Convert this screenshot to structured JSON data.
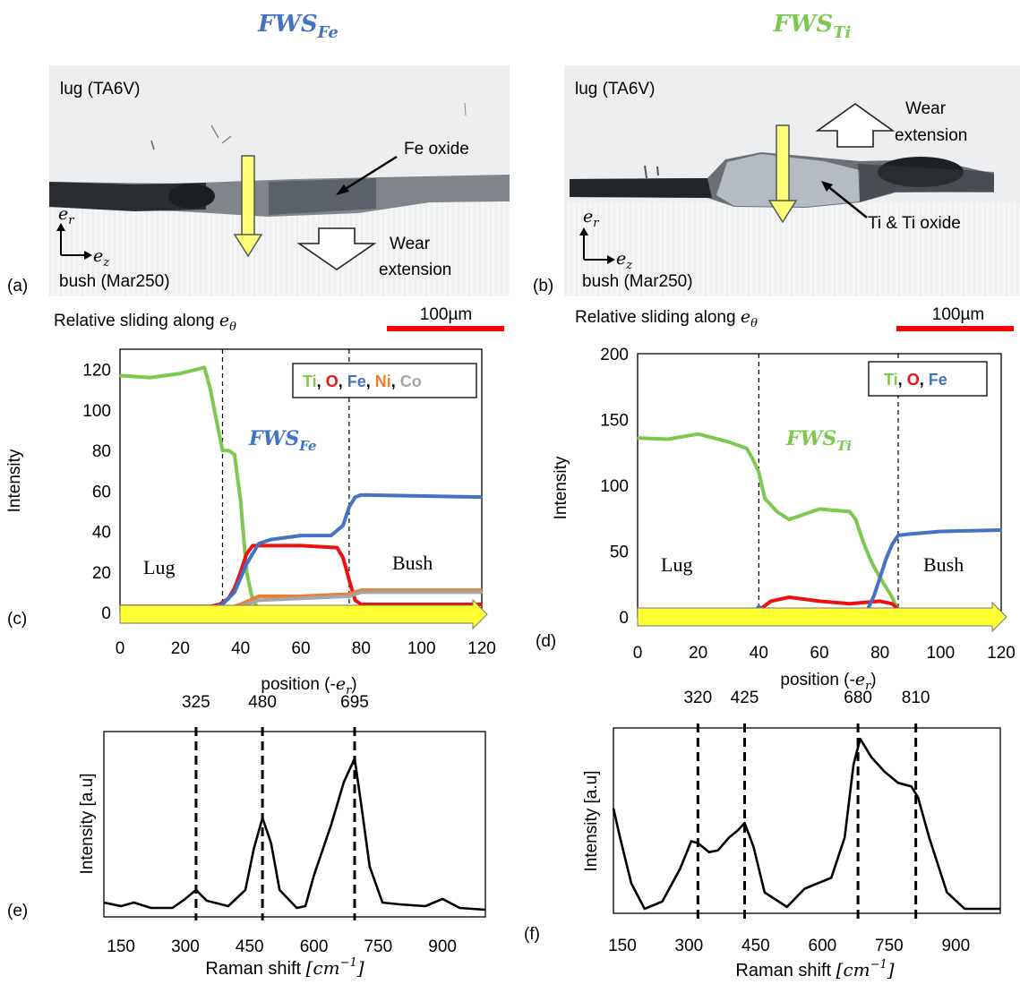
{
  "titles": {
    "left": "FWS",
    "left_sub": "Fe",
    "right": "FWS",
    "right_sub": "Ti"
  },
  "panels": {
    "a": {
      "letter": "(a)",
      "top_label": "lug (TA6V)",
      "bottom_label": "bush (Mar250)",
      "annotation": "Fe oxide",
      "wear_line1": "Wear",
      "wear_line2": "extension",
      "axis_er": "e",
      "axis_er_sub": "r",
      "axis_ez": "e",
      "axis_ez_sub": "z",
      "sliding": "Relative  sliding along ",
      "sliding_sym": "e",
      "sliding_sub": "θ",
      "scale": "100µm",
      "scale_color": "#ff0000"
    },
    "b": {
      "letter": "(b)",
      "top_label": "lug (TA6V)",
      "bottom_label": "bush (Mar250)",
      "annotation": "Ti & Ti oxide",
      "wear_line1": "Wear",
      "wear_line2": "extension",
      "axis_er": "e",
      "axis_er_sub": "r",
      "axis_ez": "e",
      "axis_ez_sub": "z",
      "sliding": "Relative  sliding along ",
      "sliding_sym": "e",
      "sliding_sub": "θ",
      "scale": "100µm",
      "scale_color": "#ff0000"
    },
    "c": {
      "letter": "(c)"
    },
    "d": {
      "letter": "(d)"
    },
    "e": {
      "letter": "(e)"
    },
    "f": {
      "letter": "(f)"
    }
  },
  "colors": {
    "Ti": "#7ec850",
    "O": "#ee1111",
    "Fe": "#4472c4",
    "Ni": "#ed7d31",
    "Co": "#a5a5a5",
    "arrow": "#ffff33",
    "title_fe": "#4472c4",
    "title_ti": "#7ec850"
  },
  "chart_data": [
    {
      "id": "c",
      "type": "line",
      "ylabel": "Intensity",
      "xlabel": "position (-",
      "xlabel_sym": "e",
      "xlabel_sub": "r",
      "xlabel_end": ")",
      "xlim": [
        0,
        120
      ],
      "ylim": [
        0,
        130
      ],
      "xticks": [
        0,
        20,
        40,
        60,
        80,
        100,
        120
      ],
      "yticks": [
        0,
        20,
        40,
        60,
        80,
        100,
        120
      ],
      "legend": [
        "Ti",
        "O",
        "Fe",
        "Ni",
        "Co"
      ],
      "region_labels": [
        "Lug",
        "Bush"
      ],
      "inner_title": "FWS",
      "inner_title_sub": "Fe",
      "vlines": [
        34,
        76
      ],
      "series": [
        {
          "name": "Ti",
          "color": "#7ec850",
          "x": [
            0,
            10,
            20,
            28,
            30,
            32,
            34,
            36,
            38,
            40,
            42,
            44,
            46,
            60,
            76,
            120
          ],
          "y": [
            117,
            116,
            118,
            121,
            110,
            95,
            80,
            80,
            78,
            55,
            20,
            6,
            2,
            1,
            1,
            1
          ]
        },
        {
          "name": "O",
          "color": "#ee1111",
          "x": [
            0,
            30,
            33,
            36,
            38,
            40,
            42,
            44,
            60,
            72,
            74,
            76,
            78,
            80,
            120
          ],
          "y": [
            3,
            3,
            4,
            7,
            12,
            20,
            29,
            33,
            33,
            32,
            27,
            16,
            6,
            4,
            4
          ]
        },
        {
          "name": "Fe",
          "color": "#4472c4",
          "x": [
            0,
            30,
            34,
            38,
            42,
            46,
            50,
            60,
            70,
            74,
            76,
            78,
            80,
            120
          ],
          "y": [
            2,
            2,
            4,
            10,
            24,
            34,
            36,
            38,
            38,
            43,
            52,
            57,
            58,
            57
          ]
        },
        {
          "name": "Ni",
          "color": "#ed7d31",
          "x": [
            0,
            34,
            40,
            46,
            60,
            76,
            80,
            120
          ],
          "y": [
            1,
            1,
            4,
            8,
            8,
            9,
            11,
            11
          ]
        },
        {
          "name": "Co",
          "color": "#a5a5a5",
          "x": [
            0,
            34,
            40,
            46,
            60,
            76,
            80,
            120
          ],
          "y": [
            1,
            1,
            3,
            6,
            7,
            8,
            10,
            10
          ]
        }
      ]
    },
    {
      "id": "d",
      "type": "line",
      "ylabel": "Intensity",
      "xlabel": "position (-",
      "xlabel_sym": "e",
      "xlabel_sub": "r",
      "xlabel_end": ")",
      "xlim": [
        0,
        120
      ],
      "ylim": [
        0,
        200
      ],
      "xticks": [
        0,
        20,
        40,
        60,
        80,
        100,
        120
      ],
      "yticks": [
        0,
        50,
        100,
        150,
        200
      ],
      "legend": [
        "Ti",
        "O",
        "Fe"
      ],
      "region_labels": [
        "Lug",
        "Bush"
      ],
      "inner_title": "FWS",
      "inner_title_sub": "Ti",
      "vlines": [
        40,
        86
      ],
      "series": [
        {
          "name": "Ti",
          "color": "#7ec850",
          "x": [
            0,
            10,
            20,
            30,
            36,
            38,
            40,
            42,
            46,
            50,
            60,
            70,
            72,
            74,
            76,
            78,
            80,
            84,
            86,
            90,
            120
          ],
          "y": [
            136,
            135,
            139,
            133,
            128,
            120,
            110,
            90,
            80,
            74,
            82,
            80,
            74,
            60,
            48,
            38,
            30,
            15,
            5,
            2,
            2
          ]
        },
        {
          "name": "O",
          "color": "#ee1111",
          "x": [
            0,
            36,
            40,
            44,
            50,
            60,
            70,
            80,
            84,
            86,
            88,
            120
          ],
          "y": [
            2,
            2,
            5,
            12,
            15,
            12,
            10,
            12,
            10,
            6,
            3,
            2
          ]
        },
        {
          "name": "Fe",
          "color": "#4472c4",
          "x": [
            0,
            38,
            40,
            42,
            44,
            70,
            74,
            76,
            78,
            80,
            82,
            84,
            86,
            90,
            100,
            120
          ],
          "y": [
            1,
            1,
            8,
            2,
            1,
            1,
            2,
            6,
            16,
            30,
            44,
            55,
            62,
            63,
            65,
            66
          ]
        }
      ]
    },
    {
      "id": "e",
      "type": "line",
      "ylabel": "Intensity [a.u]",
      "xlabel": "Raman shift ",
      "xlabel_unit": "[cm",
      "xlabel_exp": "−1",
      "xlabel_end": "]",
      "xlim": [
        110,
        1000
      ],
      "ylim": [
        0,
        1
      ],
      "xticks": [
        150,
        300,
        450,
        600,
        750,
        900
      ],
      "peaks": [
        325,
        480,
        695
      ],
      "series": [
        {
          "name": "spectrum",
          "color": "#000000",
          "x": [
            110,
            150,
            180,
            220,
            270,
            300,
            325,
            350,
            400,
            440,
            460,
            480,
            500,
            520,
            560,
            580,
            600,
            640,
            670,
            695,
            710,
            730,
            760,
            800,
            860,
            900,
            940,
            1000
          ],
          "y": [
            0.05,
            0.03,
            0.05,
            0.02,
            0.02,
            0.07,
            0.12,
            0.06,
            0.03,
            0.12,
            0.35,
            0.52,
            0.38,
            0.12,
            0.02,
            0.03,
            0.2,
            0.48,
            0.72,
            0.85,
            0.6,
            0.25,
            0.05,
            0.04,
            0.03,
            0.07,
            0.02,
            0.01
          ]
        }
      ]
    },
    {
      "id": "f",
      "type": "line",
      "ylabel": "Intensity [a.u]",
      "xlabel": "Raman shift ",
      "xlabel_unit": "[cm",
      "xlabel_exp": "−1",
      "xlabel_end": "]",
      "xlim": [
        130,
        1000
      ],
      "ylim": [
        0,
        1
      ],
      "xticks": [
        150,
        300,
        450,
        600,
        750,
        900
      ],
      "peaks": [
        320,
        425,
        680,
        810
      ],
      "series": [
        {
          "name": "spectrum",
          "color": "#000000",
          "x": [
            130,
            145,
            170,
            200,
            240,
            280,
            305,
            320,
            345,
            365,
            390,
            410,
            425,
            445,
            470,
            520,
            560,
            620,
            650,
            670,
            685,
            710,
            740,
            770,
            800,
            815,
            840,
            880,
            920,
            1000
          ],
          "y": [
            0.56,
            0.4,
            0.15,
            0.01,
            0.05,
            0.23,
            0.38,
            0.37,
            0.32,
            0.33,
            0.4,
            0.44,
            0.48,
            0.35,
            0.1,
            0.02,
            0.12,
            0.18,
            0.4,
            0.8,
            0.94,
            0.84,
            0.76,
            0.7,
            0.68,
            0.62,
            0.4,
            0.1,
            0.01,
            0.01
          ]
        }
      ]
    }
  ]
}
